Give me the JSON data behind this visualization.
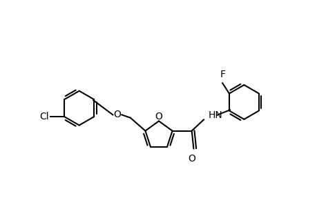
{
  "background_color": "#ffffff",
  "line_color": "#000000",
  "line_width": 1.5,
  "font_size": 10,
  "figsize": [
    4.6,
    3.0
  ],
  "dpi": 100,
  "xlim": [
    -4.2,
    4.2
  ],
  "ylim": [
    -1.6,
    2.4
  ]
}
